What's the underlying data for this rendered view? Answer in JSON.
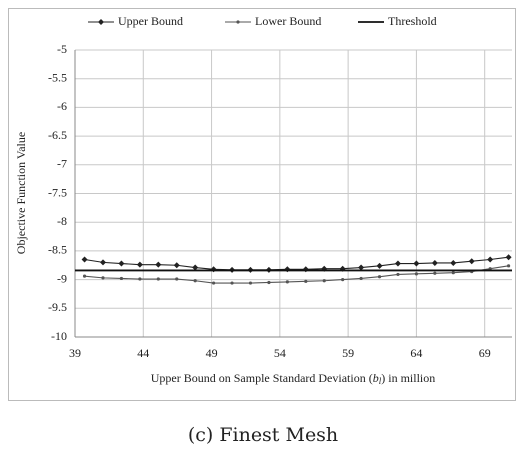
{
  "chart_data": {
    "type": "line",
    "y_label": "Objective Function Value",
    "x_label_parts": [
      "Upper Bound on Sample Standard Deviation (",
      "b",
      "l",
      ") in million"
    ],
    "caption": "(c) Finest Mesh",
    "xlim": [
      39,
      71
    ],
    "xticks": [
      39,
      44,
      49,
      54,
      59,
      64,
      69
    ],
    "ylim": [
      -10,
      -5
    ],
    "yticks": [
      -5,
      -5.5,
      -6,
      -6.5,
      -7,
      -7.5,
      -8,
      -8.5,
      -9,
      -9.5,
      -10
    ],
    "grid": true,
    "legend": "top",
    "series": [
      {
        "name": "Upper Bound",
        "color": "#222222",
        "marker": "diamond",
        "x": [
          39.7,
          41.05,
          42.4,
          43.75,
          45.1,
          46.45,
          47.8,
          49.15,
          50.5,
          51.85,
          53.2,
          54.55,
          55.9,
          57.25,
          58.6,
          59.95,
          61.3,
          62.65,
          64,
          65.35,
          66.7,
          68.05,
          69.4,
          70.75
        ],
        "values": [
          -8.65,
          -8.7,
          -8.72,
          -8.74,
          -8.74,
          -8.75,
          -8.79,
          -8.82,
          -8.83,
          -8.83,
          -8.83,
          -8.82,
          -8.82,
          -8.81,
          -8.81,
          -8.79,
          -8.76,
          -8.72,
          -8.72,
          -8.71,
          -8.71,
          -8.68,
          -8.65,
          -8.61
        ]
      },
      {
        "name": "Lower Bound",
        "color": "#555555",
        "marker": "dot",
        "x": [
          39.7,
          41.05,
          42.4,
          43.75,
          45.1,
          46.45,
          47.8,
          49.15,
          50.5,
          51.85,
          53.2,
          54.55,
          55.9,
          57.25,
          58.6,
          59.95,
          61.3,
          62.65,
          64,
          65.35,
          66.7,
          68.05,
          69.4,
          70.75
        ],
        "values": [
          -8.94,
          -8.97,
          -8.98,
          -8.99,
          -8.99,
          -8.99,
          -9.02,
          -9.06,
          -9.06,
          -9.06,
          -9.05,
          -9.04,
          -9.03,
          -9.02,
          -9.0,
          -8.98,
          -8.95,
          -8.91,
          -8.9,
          -8.89,
          -8.88,
          -8.86,
          -8.81,
          -8.76
        ]
      },
      {
        "name": "Threshold",
        "color": "#111111",
        "marker": "none",
        "x": [
          39,
          71
        ],
        "values": [
          -8.84,
          -8.84
        ]
      }
    ]
  }
}
